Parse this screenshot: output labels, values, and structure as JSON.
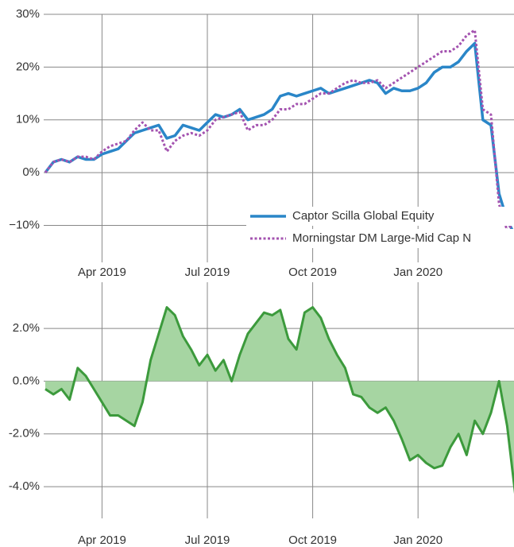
{
  "chart_data": [
    {
      "type": "line",
      "categories": [
        null,
        null,
        null,
        null,
        null,
        null,
        null,
        "Apr 2019",
        null,
        null,
        null,
        null,
        null,
        null,
        null,
        null,
        null,
        null,
        null,
        null,
        "Jul 2019",
        null,
        null,
        null,
        null,
        null,
        null,
        null,
        null,
        null,
        null,
        null,
        null,
        "Oct 2019",
        null,
        null,
        null,
        null,
        null,
        null,
        null,
        null,
        null,
        null,
        null,
        null,
        "Jan 2020",
        null,
        null,
        null,
        null,
        null,
        null,
        null,
        null,
        null,
        null,
        null,
        null
      ],
      "series": [
        {
          "name": "Captor Scilla Global Equity",
          "color": "#2a86c8",
          "dash": false,
          "values": [
            0,
            2,
            2.5,
            2,
            3,
            2.5,
            2.5,
            3.5,
            4,
            4.5,
            6,
            7.5,
            8,
            8.5,
            9,
            6.5,
            7,
            9,
            8.5,
            8,
            9.5,
            11,
            10.5,
            11,
            12,
            10,
            10.5,
            11,
            12,
            14.5,
            15,
            14.5,
            15,
            15.5,
            16,
            15,
            15.5,
            16,
            16.5,
            17,
            17.5,
            17,
            15,
            16,
            15.5,
            15.5,
            16,
            17,
            19,
            20,
            20,
            21,
            23,
            24.5,
            10,
            9,
            -4,
            -9,
            -12
          ]
        },
        {
          "name": "Morningstar DM Large-Mid Cap N",
          "color": "#a454b0",
          "dash": true,
          "values": [
            0,
            2,
            2.5,
            2,
            3,
            3,
            2.5,
            4,
            5,
            5.5,
            6,
            8,
            9.5,
            8,
            8,
            4,
            6,
            7,
            7.5,
            7,
            8,
            10,
            10.5,
            11,
            11.5,
            8,
            9,
            9,
            10,
            12,
            12,
            13,
            13,
            14,
            15,
            15,
            16,
            17,
            17.5,
            17,
            17,
            17.5,
            16,
            17,
            18,
            19,
            20,
            21,
            22,
            23,
            23,
            24,
            26,
            27,
            12,
            11,
            -6,
            -11,
            -9
          ]
        }
      ],
      "ylim": [
        -14,
        30
      ],
      "yticks": [
        {
          "value": -10,
          "label": "−10%"
        },
        {
          "value": 0,
          "label": "0%"
        },
        {
          "value": 10,
          "label": "10%"
        },
        {
          "value": 20,
          "label": "20%"
        },
        {
          "value": 30,
          "label": "30%"
        }
      ],
      "grid": true,
      "legend": "lower right"
    },
    {
      "type": "area",
      "categories": [
        null,
        null,
        null,
        null,
        null,
        null,
        null,
        "Apr 2019",
        null,
        null,
        null,
        null,
        null,
        null,
        null,
        null,
        null,
        null,
        null,
        null,
        "Jul 2019",
        null,
        null,
        null,
        null,
        null,
        null,
        null,
        null,
        null,
        null,
        null,
        null,
        "Oct 2019",
        null,
        null,
        null,
        null,
        null,
        null,
        null,
        null,
        null,
        null,
        null,
        null,
        "Jan 2020",
        null,
        null,
        null,
        null,
        null,
        null,
        null,
        null,
        null,
        null,
        null,
        null
      ],
      "series": [
        {
          "color": "#3c9a3c",
          "fill": "#a6d5a2",
          "values": [
            -0.3,
            -0.5,
            -0.3,
            -0.7,
            0.5,
            0.2,
            -0.3,
            -0.8,
            -1.3,
            -1.3,
            -1.5,
            -1.7,
            -0.8,
            0.8,
            1.8,
            2.8,
            2.5,
            1.7,
            1.2,
            0.6,
            1.0,
            0.4,
            0.8,
            0.0,
            1.0,
            1.8,
            2.2,
            2.6,
            2.5,
            2.7,
            1.6,
            1.2,
            2.6,
            2.8,
            2.4,
            1.6,
            1.0,
            0.5,
            -0.5,
            -0.6,
            -1.0,
            -1.2,
            -1.0,
            -1.5,
            -2.2,
            -3.0,
            -2.8,
            -3.1,
            -3.3,
            -3.2,
            -2.5,
            -2.0,
            -2.8,
            -1.5,
            -2.0,
            -1.2,
            0.0,
            -1.7,
            -4.3
          ]
        }
      ],
      "ylim": [
        -4.6,
        3.6
      ],
      "yticks": [
        {
          "value": -4,
          "label": "-4.0%"
        },
        {
          "value": -2,
          "label": "-2.0%"
        },
        {
          "value": 0,
          "label": "0.0%"
        },
        {
          "value": 2,
          "label": "2.0%"
        }
      ],
      "grid": true
    }
  ]
}
